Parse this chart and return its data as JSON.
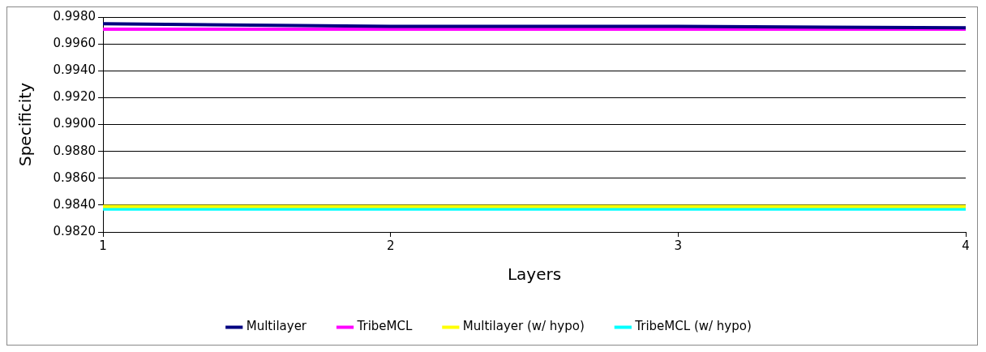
{
  "chart_data": {
    "type": "line",
    "xlabel": "Layers",
    "ylabel": "Specificity",
    "x": [
      1,
      2,
      3,
      4
    ],
    "series": [
      {
        "name": "Multilayer",
        "color": "#000080",
        "values": [
          0.9975,
          0.9973,
          0.9973,
          0.9972
        ]
      },
      {
        "name": "TribeMCL",
        "color": "#ff00ff",
        "values": [
          0.9971,
          0.9971,
          0.9971,
          0.9971
        ]
      },
      {
        "name": "Multilayer (w/ hypo)",
        "color": "#ffff00",
        "values": [
          0.9839,
          0.9839,
          0.9839,
          0.9839
        ]
      },
      {
        "name": "TribeMCL (w/ hypo)",
        "color": "#00ffff",
        "values": [
          0.9837,
          0.9837,
          0.9837,
          0.9837
        ]
      }
    ],
    "xlim": [
      1,
      4
    ],
    "xticks": [
      1,
      2,
      3,
      4
    ],
    "ylim": [
      0.982,
      0.998
    ],
    "yticks": [
      {
        "value": 0.982,
        "label": "0.9820"
      },
      {
        "value": 0.984,
        "label": "0.9840"
      },
      {
        "value": 0.986,
        "label": "0.9860"
      },
      {
        "value": 0.988,
        "label": "0.9880"
      },
      {
        "value": 0.99,
        "label": "0.9900"
      },
      {
        "value": 0.992,
        "label": "0.9920"
      },
      {
        "value": 0.994,
        "label": "0.9940"
      },
      {
        "value": 0.996,
        "label": "0.9960"
      },
      {
        "value": 0.998,
        "label": "0.9980"
      }
    ],
    "grid": "y",
    "legend": "bottom",
    "marker": "none",
    "line_style": "solid"
  }
}
